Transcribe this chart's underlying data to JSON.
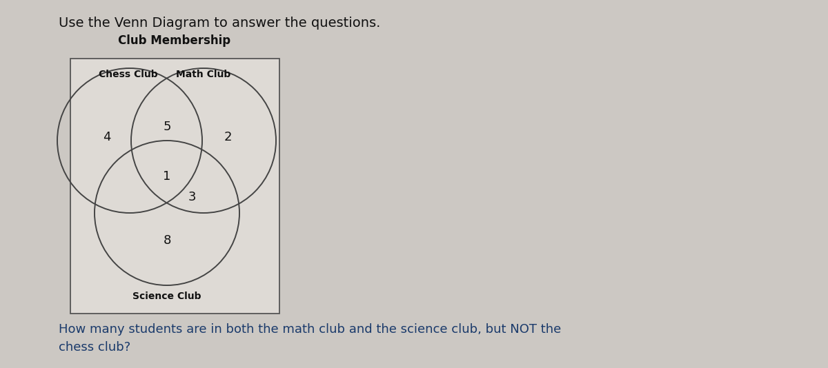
{
  "title_main": "Use the Venn Diagram to answer the questions.",
  "venn_title": "Club Membership",
  "label_chess": "Chess Club",
  "label_math": "Math Club",
  "label_science": "Science Club",
  "val_chess_only": "4",
  "val_chess_math": "5",
  "val_math_only": "2",
  "val_all_three": "1",
  "val_math_science": "3",
  "val_science_only": "8",
  "question": "How many students are in both the math club and the science club, but NOT the\nchess club?",
  "bg_color": "#ccc8c3",
  "box_bg_color": "#dedad5",
  "circle_edge_color": "#444444",
  "text_color": "#111111",
  "question_color": "#1a3a6b",
  "circle_lw": 1.4,
  "title_main_fontsize": 14,
  "venn_title_fontsize": 12,
  "label_fontsize": 10,
  "number_fontsize": 13,
  "question_fontsize": 13
}
